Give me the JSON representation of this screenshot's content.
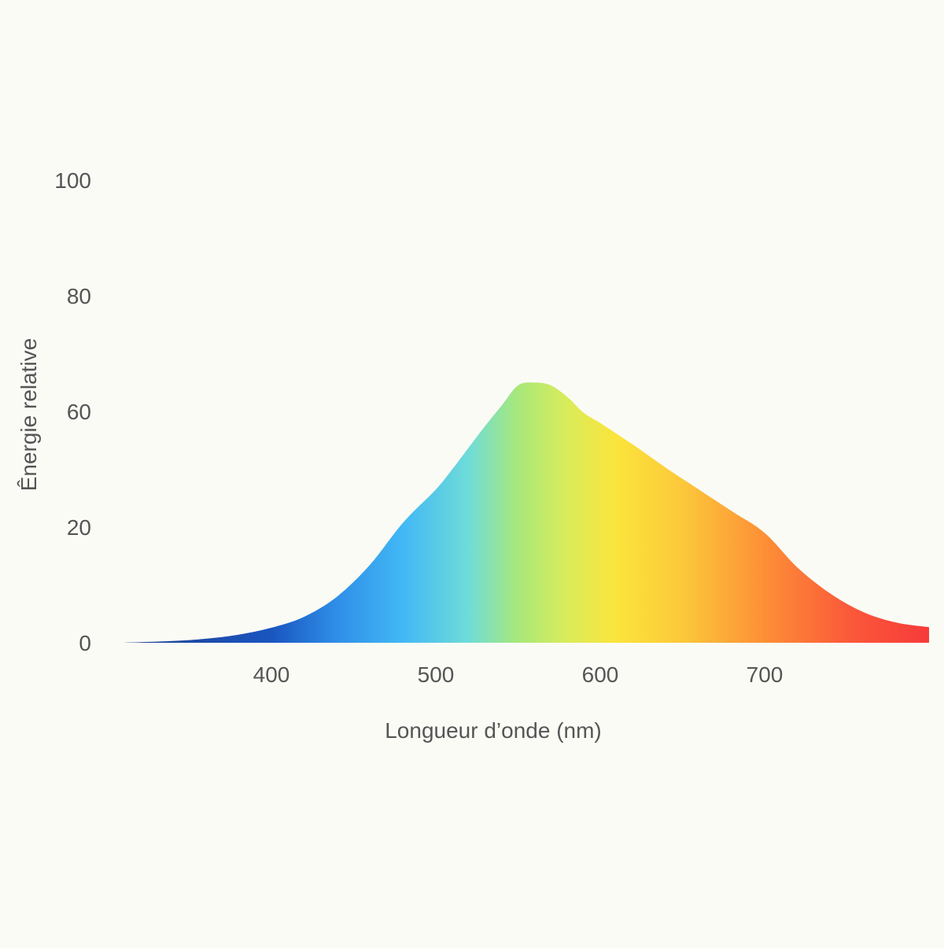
{
  "chart_data": {
    "type": "area",
    "title": "",
    "xlabel": "Longueur d’onde (nm)",
    "ylabel": "Ênergie relative",
    "xlim": [
      310,
      800
    ],
    "y_ticks": [
      {
        "value": 0,
        "label": "0"
      },
      {
        "value": 20,
        "label": "20"
      },
      {
        "value": 60,
        "label": "60"
      },
      {
        "value": 80,
        "label": "80"
      },
      {
        "value": 100,
        "label": "100"
      }
    ],
    "x_ticks": [
      {
        "value": 400,
        "label": "400"
      },
      {
        "value": 500,
        "label": "500"
      },
      {
        "value": 600,
        "label": "600"
      },
      {
        "value": 700,
        "label": "700"
      }
    ],
    "grid": false,
    "legend": "none",
    "series": [
      {
        "x": [
          310,
          340,
          360,
          380,
          400,
          420,
          440,
          460,
          480,
          500,
          510,
          520,
          530,
          540,
          550,
          560,
          570,
          580,
          590,
          600,
          620,
          640,
          660,
          680,
          700,
          720,
          740,
          760,
          780,
          800
        ],
        "y": [
          0,
          0.3,
          0.7,
          1.4,
          2.6,
          4.5,
          8,
          13.5,
          21.5,
          33,
          40,
          47.5,
          55,
          61,
          64.5,
          65,
          64.5,
          62.5,
          59.5,
          56,
          48.5,
          40.5,
          33,
          25.5,
          19,
          13,
          8.5,
          5.3,
          3.5,
          2.7
        ]
      }
    ],
    "gradient_stops": [
      {
        "wavelength": 310,
        "color": "#1f3f8f"
      },
      {
        "wavelength": 400,
        "color": "#1a55c0"
      },
      {
        "wavelength": 440,
        "color": "#2f8fe8"
      },
      {
        "wavelength": 480,
        "color": "#42b8f5"
      },
      {
        "wavelength": 520,
        "color": "#6fdcd8"
      },
      {
        "wavelength": 550,
        "color": "#a8e87a"
      },
      {
        "wavelength": 580,
        "color": "#d9ec5a"
      },
      {
        "wavelength": 610,
        "color": "#fbe43b"
      },
      {
        "wavelength": 650,
        "color": "#fcc83a"
      },
      {
        "wavelength": 700,
        "color": "#fd8f36"
      },
      {
        "wavelength": 750,
        "color": "#fb5a3a"
      },
      {
        "wavelength": 800,
        "color": "#f73a3a"
      }
    ]
  }
}
